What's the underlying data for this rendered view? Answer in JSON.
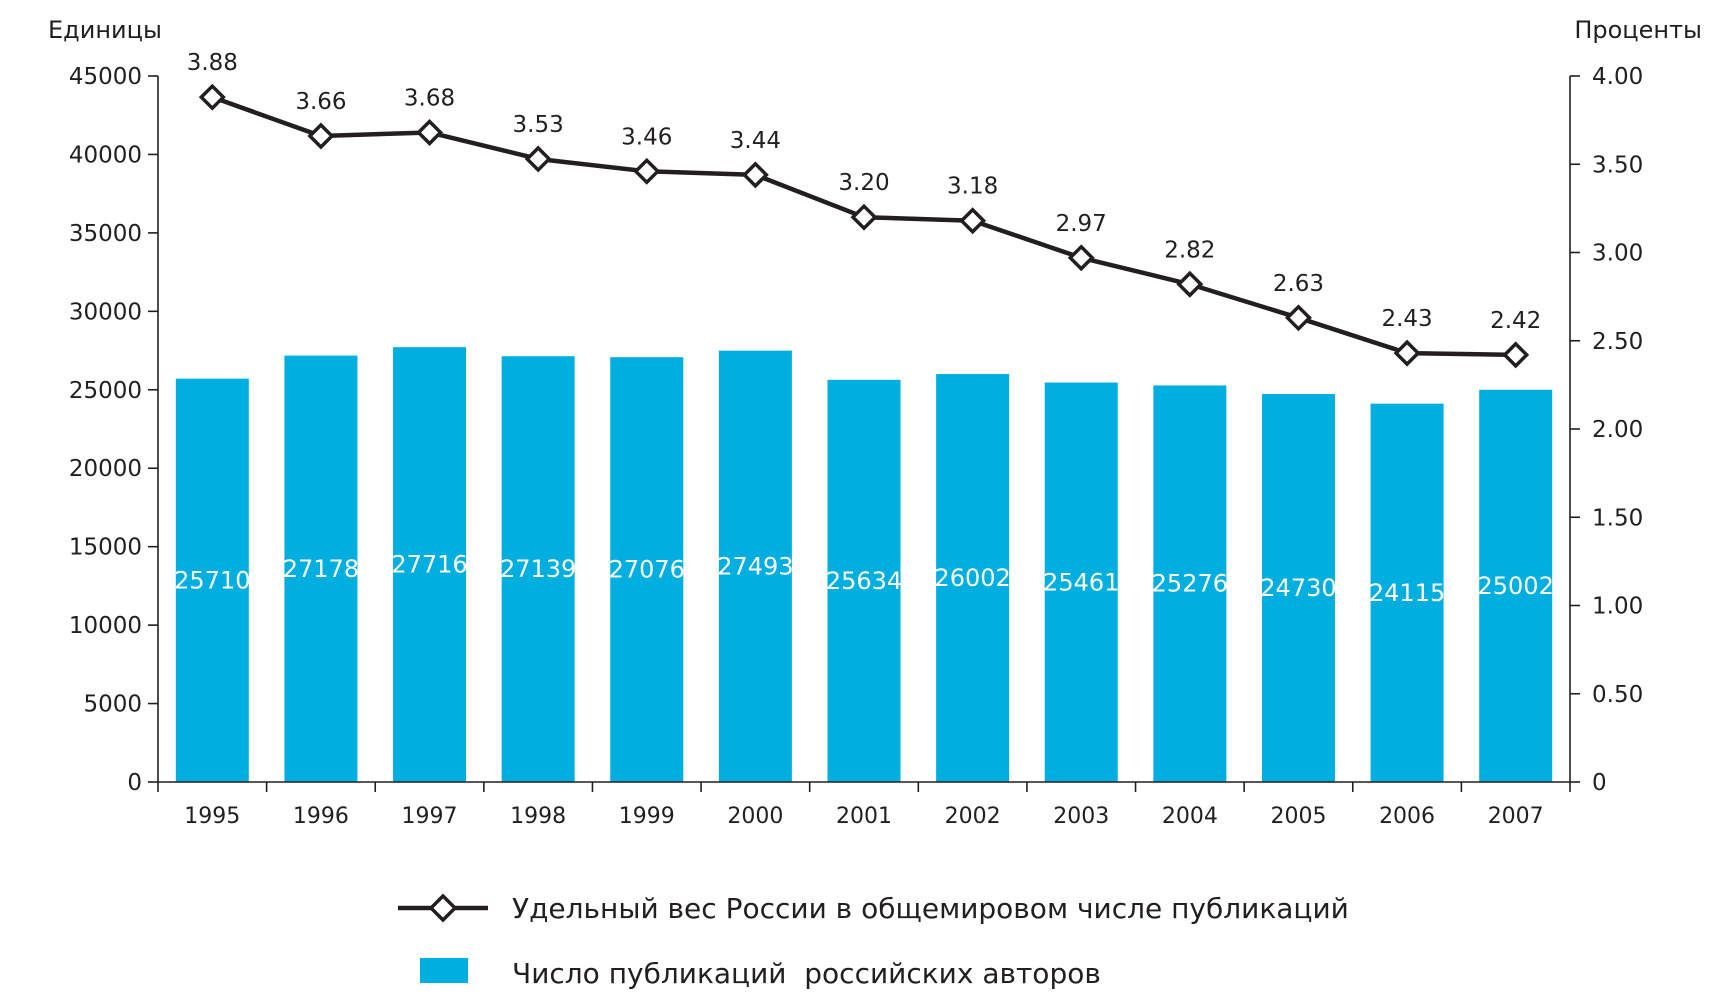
{
  "chart_data": {
    "type": "bar",
    "title": "",
    "categories": [
      "1995",
      "1996",
      "1997",
      "1998",
      "1999",
      "2000",
      "2001",
      "2002",
      "2003",
      "2004",
      "2005",
      "2006",
      "2007"
    ],
    "y_left": {
      "label": "Единицы",
      "range": [
        0,
        45000
      ],
      "ticks": [
        "0",
        "5000",
        "10000",
        "15000",
        "20000",
        "25000",
        "30000",
        "35000",
        "40000",
        "45000"
      ]
    },
    "y_right": {
      "label": "Проценты",
      "range": [
        0,
        4.0
      ],
      "ticks": [
        "0",
        "0.50",
        "1.00",
        "1.50",
        "2.00",
        "2.50",
        "3.00",
        "3.50",
        "4.00"
      ]
    },
    "series": [
      {
        "name": "Число публикаций  российских авторов",
        "type": "bar",
        "axis": "left",
        "color": "#00aee0",
        "values": [
          25710,
          27178,
          27716,
          27139,
          27076,
          27493,
          25634,
          26002,
          25461,
          25276,
          24730,
          24115,
          25002
        ],
        "labels": [
          "25710",
          "27178",
          "27716",
          "27139",
          "27076",
          "27493",
          "25634",
          "26002",
          "25461",
          "25276",
          "24730",
          "24115",
          "25002"
        ]
      },
      {
        "name": "Удельный вес России в общемировом числе публикаций",
        "type": "line",
        "axis": "right",
        "color": "#231f20",
        "marker": "diamond-open",
        "values": [
          3.88,
          3.66,
          3.68,
          3.53,
          3.46,
          3.44,
          3.2,
          3.18,
          2.97,
          2.82,
          2.63,
          2.43,
          2.42
        ],
        "labels": [
          "3.88",
          "3.66",
          "3.68",
          "3.53",
          "3.46",
          "3.44",
          "3.20",
          "3.18",
          "2.97",
          "2.82",
          "2.63",
          "2.43",
          "2.42"
        ]
      }
    ],
    "grid": false,
    "legend_position": "bottom"
  }
}
